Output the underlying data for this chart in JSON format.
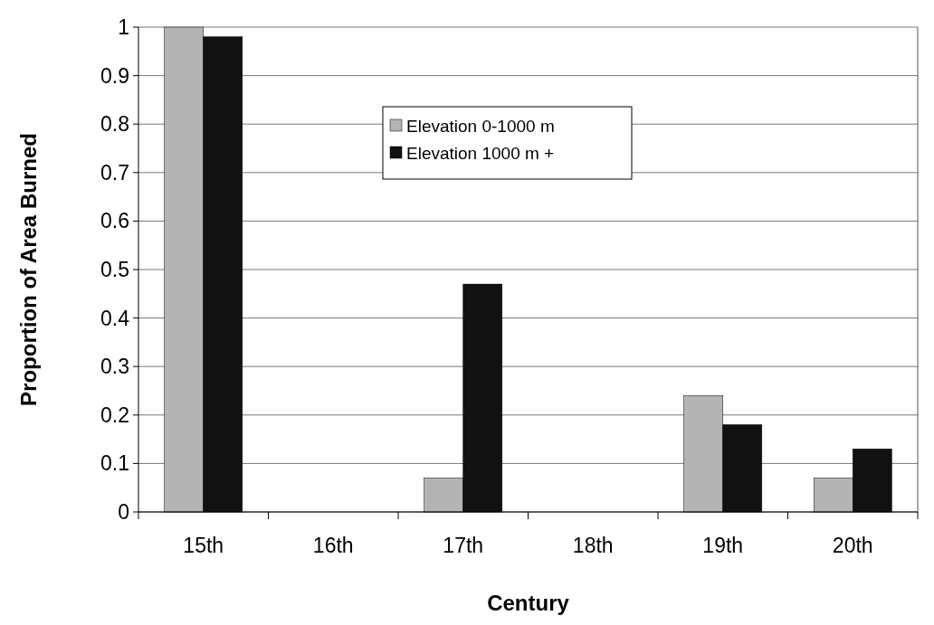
{
  "chart_data": {
    "type": "bar",
    "xlabel": "Century",
    "ylabel": "Proportion of Area Burned",
    "categories": [
      "15th",
      "16th",
      "17th",
      "18th",
      "19th",
      "20th"
    ],
    "series": [
      {
        "name": "Elevation 0-1000 m",
        "color": "#b4b4b4",
        "values": [
          1,
          0,
          0.07,
          0,
          0.24,
          0.07
        ]
      },
      {
        "name": "Elevation 1000 m +",
        "color": "#111111",
        "values": [
          0.98,
          0,
          0.47,
          0,
          0.18,
          0.13
        ]
      }
    ],
    "ylim": [
      0,
      1
    ],
    "yticks": [
      0,
      0.1,
      0.2,
      0.3,
      0.4,
      0.5,
      0.6,
      0.7,
      0.8,
      0.9,
      1
    ],
    "grid": "y",
    "legend": "top"
  }
}
